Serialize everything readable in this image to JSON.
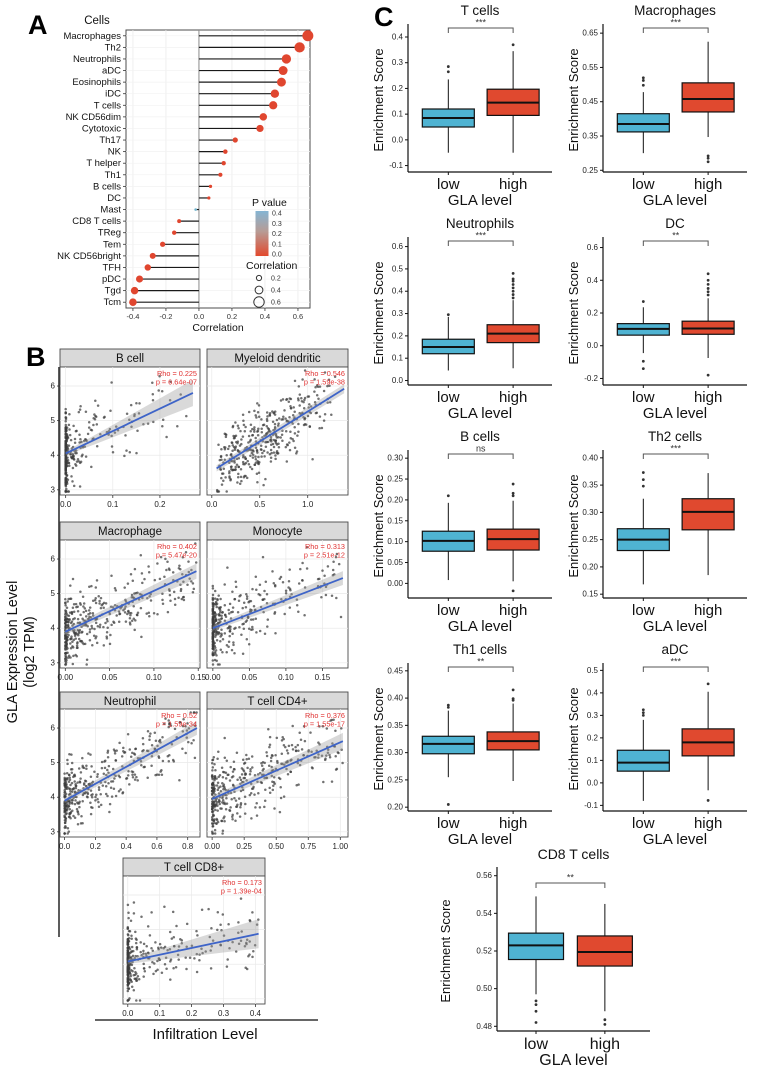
{
  "panels": {
    "a_label": "A",
    "b_label": "B",
    "c_label": "C"
  },
  "panel_a": {
    "title": "Cells",
    "xlabel": "Correlation",
    "x_ticks": [
      "-0.4",
      "-0.2",
      "0.0",
      "0.2",
      "0.4",
      "0.6"
    ],
    "x_tick_values": [
      -0.4,
      -0.2,
      0.0,
      0.2,
      0.4,
      0.6
    ],
    "xlim": [
      -0.442,
      0.673
    ],
    "colors": {
      "dot_red": "#E0462F",
      "dot_blue": "#72B5CE",
      "stick": "#1A1A1A",
      "zero_line": "#8A8A8A",
      "grid": "#ECECEC"
    },
    "legend_p_value": {
      "title": "P value",
      "labels": [
        "0.4",
        "0.3",
        "0.2",
        "0.1",
        "0.0"
      ],
      "color_top": "#85B5D3",
      "color_mid": "#B79C96",
      "color_bottom": "#E2492E"
    },
    "legend_correlation": {
      "title": "Correlation",
      "labels": [
        "0.2",
        "0.4",
        "0.6"
      ],
      "sizes": [
        2.6,
        3.9,
        5.2
      ]
    }
  },
  "panel_b": {
    "axis_label_line1": "GLA Expression Level",
    "axis_label_line2": "(log2 TPM)",
    "xlabel": "Infiltration Level",
    "y_ticks": [
      "3",
      "4",
      "5",
      "6"
    ],
    "y_tick_values": [
      3,
      4,
      5,
      6
    ],
    "ylim": [
      2.85,
      6.55
    ],
    "colors": {
      "point": "#3C3C3C",
      "line": "#3E64C8",
      "band": "#9A9A9A",
      "strip_bg": "#D9D9D9",
      "stat": "#E03131"
    }
  },
  "panel_c": {
    "ylabel": "Enrichment Score",
    "xlabel": "GLA level",
    "categories": [
      "low",
      "high"
    ],
    "colors": {
      "low": "#4FB3D2",
      "high": "#E0492F",
      "box_stroke": "#111111"
    }
  },
  "chart_data": [
    {
      "id": "A",
      "type": "lollipop",
      "title": "Cells",
      "xlabel": "Correlation",
      "cells": [
        "Macrophages",
        "Th2",
        "Neutrophils",
        "aDC",
        "Eosinophils",
        "iDC",
        "T cells",
        "NK CD56dim",
        "Cytotoxic",
        "Th17",
        "NK",
        "T helper",
        "Th1",
        "B cells",
        "DC",
        "Mast",
        "CD8 T cells",
        "TReg",
        "Tem",
        "NK CD56bright",
        "TFH",
        "pDC",
        "Tgd",
        "Tcm"
      ],
      "correlation": [
        0.66,
        0.61,
        0.53,
        0.51,
        0.5,
        0.46,
        0.45,
        0.39,
        0.37,
        0.22,
        0.16,
        0.15,
        0.13,
        0.07,
        0.06,
        -0.02,
        -0.12,
        -0.15,
        -0.22,
        -0.28,
        -0.31,
        -0.36,
        -0.39,
        -0.4
      ],
      "high_p_cells": [
        "Mast"
      ]
    },
    {
      "id": "B",
      "type": "scatter",
      "plots": [
        {
          "title": "B cell",
          "rho_label": "Rho = 0.225",
          "p_label": "p = 6.64e-07",
          "x_ticks": [
            "0.0",
            "0.1",
            "0.2"
          ],
          "x_tick_values": [
            0,
            0.1,
            0.2
          ],
          "xlim": [
            -0.012,
            0.285
          ],
          "line": {
            "x0": 0,
            "y0": 4.05,
            "x1": 0.27,
            "y1": 5.8
          },
          "band_w0": 0.06,
          "band_w1": 0.38,
          "n": 330,
          "dist": "zero",
          "cluster": 8,
          "xmax_pts": 0.27,
          "noise": 0.55,
          "seed": 7
        },
        {
          "title": "Myeloid dendritic",
          "rho_label": "Rho = 0.546",
          "p_label": "p = 1.59e-38",
          "x_ticks": [
            "0.0",
            "0.5",
            "1.0"
          ],
          "x_tick_values": [
            0,
            0.5,
            1
          ],
          "xlim": [
            -0.05,
            1.42
          ],
          "line": {
            "x0": 0.05,
            "y0": 3.62,
            "x1": 1.38,
            "y1": 5.92
          },
          "band_w0": 0.09,
          "band_w1": 0.13,
          "n": 390,
          "dist": "mid",
          "xmin_pts": 0.05,
          "xmax_pts": 1.35,
          "noise": 0.48,
          "seed": 13
        },
        {
          "title": "Macrophage",
          "rho_label": "Rho = 0.402",
          "p_label": "p = 5.47e-20",
          "x_ticks": [
            "0.00",
            "0.05",
            "0.10",
            "0.15"
          ],
          "x_tick_values": [
            0,
            0.05,
            0.1,
            0.15
          ],
          "xlim": [
            -0.006,
            0.152
          ],
          "line": {
            "x0": 0,
            "y0": 3.9,
            "x1": 0.148,
            "y1": 5.65
          },
          "band_w0": 0.08,
          "band_w1": 0.22,
          "n": 390,
          "dist": "zero",
          "cluster": 2.8,
          "xmax_pts": 0.148,
          "noise": 0.48,
          "seed": 21
        },
        {
          "title": "Monocyte",
          "rho_label": "Rho = 0.313",
          "p_label": "p = 2.51e-12",
          "x_ticks": [
            "0.00",
            "0.05",
            "0.10",
            "0.15"
          ],
          "x_tick_values": [
            0,
            0.05,
            0.1,
            0.15
          ],
          "xlim": [
            -0.008,
            0.185
          ],
          "line": {
            "x0": 0,
            "y0": 4.0,
            "x1": 0.178,
            "y1": 5.45
          },
          "band_w0": 0.07,
          "band_w1": 0.2,
          "n": 360,
          "dist": "zero",
          "cluster": 4,
          "xmax_pts": 0.178,
          "noise": 0.5,
          "seed": 33
        },
        {
          "title": "Neutrophil",
          "rho_label": "Rho = 0.52",
          "p_label": "p = 1.59e-34",
          "x_ticks": [
            "0.0",
            "0.2",
            "0.4",
            "0.6",
            "0.8"
          ],
          "x_tick_values": [
            0,
            0.2,
            0.4,
            0.6,
            0.8
          ],
          "xlim": [
            -0.03,
            0.88
          ],
          "line": {
            "x0": 0,
            "y0": 3.9,
            "x1": 0.86,
            "y1": 6.0
          },
          "band_w0": 0.07,
          "band_w1": 0.2,
          "n": 390,
          "dist": "zero",
          "cluster": 2.6,
          "xmax_pts": 0.86,
          "noise": 0.48,
          "seed": 41
        },
        {
          "title": "T cell CD4+",
          "rho_label": "Rho = 0.376",
          "p_label": "p = 1.55e-17",
          "x_ticks": [
            "0.00",
            "0.25",
            "0.50",
            "0.75",
            "1.00"
          ],
          "x_tick_values": [
            0,
            0.25,
            0.5,
            0.75,
            1
          ],
          "xlim": [
            -0.04,
            1.06
          ],
          "line": {
            "x0": 0,
            "y0": 3.95,
            "x1": 1.02,
            "y1": 5.62
          },
          "band_w0": 0.08,
          "band_w1": 0.24,
          "n": 390,
          "dist": "zero",
          "cluster": 2.4,
          "xmax_pts": 1.02,
          "noise": 0.5,
          "seed": 55
        },
        {
          "title": "T cell CD8+",
          "rho_label": "Rho = 0.173",
          "p_label": "p = 1.39e-04",
          "x_ticks": [
            "0.0",
            "0.1",
            "0.2",
            "0.3",
            "0.4"
          ],
          "x_tick_values": [
            0,
            0.1,
            0.2,
            0.3,
            0.4
          ],
          "xlim": [
            -0.015,
            0.43
          ],
          "line": {
            "x0": 0,
            "y0": 4.08,
            "x1": 0.41,
            "y1": 4.88
          },
          "band_w0": 0.07,
          "band_w1": 0.42,
          "n": 340,
          "dist": "zero",
          "cluster": 4.5,
          "xmax_pts": 0.41,
          "noise": 0.5,
          "seed": 67
        }
      ]
    },
    {
      "id": "C",
      "type": "box",
      "plots": [
        {
          "title": "T cells",
          "significance": "***",
          "y_ticks": [
            "-0.1",
            "0.0",
            "0.1",
            "0.2",
            "0.3",
            "0.4"
          ],
          "y_tick_values": [
            -0.1,
            0,
            0.1,
            0.2,
            0.3,
            0.4
          ],
          "ylim": [
            -0.125,
            0.435
          ],
          "low": {
            "whisker_low": -0.05,
            "q1": 0.05,
            "median": 0.085,
            "q3": 0.12,
            "whisker_high": 0.235,
            "outliers": [
              0.265,
              0.285
            ]
          },
          "high": {
            "whisker_low": -0.05,
            "q1": 0.095,
            "median": 0.145,
            "q3": 0.197,
            "whisker_high": 0.345,
            "outliers": [
              0.37
            ]
          }
        },
        {
          "title": "Macrophages",
          "significance": "***",
          "y_ticks": [
            "0.25",
            "0.35",
            "0.45",
            "0.55",
            "0.65"
          ],
          "y_tick_values": [
            0.25,
            0.35,
            0.45,
            0.55,
            0.65
          ],
          "ylim": [
            0.245,
            0.665
          ],
          "low": {
            "whisker_low": 0.3,
            "q1": 0.362,
            "median": 0.385,
            "q3": 0.415,
            "whisker_high": 0.478,
            "outliers": [
              0.498,
              0.512,
              0.52
            ]
          },
          "high": {
            "whisker_low": 0.347,
            "q1": 0.42,
            "median": 0.458,
            "q3": 0.505,
            "whisker_high": 0.625,
            "outliers": [
              0.275,
              0.285,
              0.292
            ]
          }
        },
        {
          "title": "Neutrophils",
          "significance": "***",
          "y_ticks": [
            "0.0",
            "0.1",
            "0.2",
            "0.3",
            "0.4",
            "0.5",
            "0.6"
          ],
          "y_tick_values": [
            0,
            0.1,
            0.2,
            0.3,
            0.4,
            0.5,
            0.6
          ],
          "ylim": [
            -0.02,
            0.625
          ],
          "low": {
            "whisker_low": 0.045,
            "q1": 0.12,
            "median": 0.15,
            "q3": 0.185,
            "whisker_high": 0.285,
            "outliers": [
              0.295
            ]
          },
          "high": {
            "whisker_low": 0.055,
            "q1": 0.17,
            "median": 0.21,
            "q3": 0.25,
            "whisker_high": 0.36,
            "outliers": [
              0.37,
              0.385,
              0.4,
              0.415,
              0.43,
              0.445,
              0.455,
              0.48
            ]
          }
        },
        {
          "title": "DC",
          "significance": "**",
          "y_ticks": [
            "-0.2",
            "0.0",
            "0.2",
            "0.4",
            "0.6"
          ],
          "y_tick_values": [
            -0.2,
            0,
            0.2,
            0.4,
            0.6
          ],
          "ylim": [
            -0.24,
            0.64
          ],
          "low": {
            "whisker_low": -0.045,
            "q1": 0.065,
            "median": 0.103,
            "q3": 0.135,
            "whisker_high": 0.235,
            "outliers": [
              0.27,
              -0.095,
              -0.14
            ]
          },
          "high": {
            "whisker_low": -0.075,
            "q1": 0.07,
            "median": 0.105,
            "q3": 0.15,
            "whisker_high": 0.29,
            "outliers": [
              0.31,
              0.33,
              0.35,
              0.375,
              0.4,
              0.44,
              -0.18
            ]
          }
        },
        {
          "title": "B cells",
          "significance": "ns",
          "y_ticks": [
            "0.00",
            "0.05",
            "0.10",
            "0.15",
            "0.20",
            "0.25",
            "0.30"
          ],
          "y_tick_values": [
            0,
            0.05,
            0.1,
            0.15,
            0.2,
            0.25,
            0.3
          ],
          "ylim": [
            -0.035,
            0.31
          ],
          "low": {
            "whisker_low": 0.008,
            "q1": 0.077,
            "median": 0.102,
            "q3": 0.125,
            "whisker_high": 0.193,
            "outliers": [
              0.21
            ]
          },
          "high": {
            "whisker_low": 0.005,
            "q1": 0.08,
            "median": 0.106,
            "q3": 0.13,
            "whisker_high": 0.198,
            "outliers": [
              0.21,
              0.216,
              0.238,
              -0.018
            ]
          }
        },
        {
          "title": "Th2 cells",
          "significance": "***",
          "y_ticks": [
            "0.15",
            "0.20",
            "0.25",
            "0.30",
            "0.35",
            "0.40"
          ],
          "y_tick_values": [
            0.15,
            0.2,
            0.25,
            0.3,
            0.35,
            0.4
          ],
          "ylim": [
            0.143,
            0.407
          ],
          "low": {
            "whisker_low": 0.168,
            "q1": 0.23,
            "median": 0.25,
            "q3": 0.27,
            "whisker_high": 0.325,
            "outliers": [
              0.348,
              0.36,
              0.373
            ]
          },
          "high": {
            "whisker_low": 0.185,
            "q1": 0.268,
            "median": 0.301,
            "q3": 0.325,
            "whisker_high": 0.372,
            "outliers": []
          }
        },
        {
          "title": "Th1 cells",
          "significance": "**",
          "y_ticks": [
            "0.20",
            "0.25",
            "0.30",
            "0.35",
            "0.40",
            "0.45"
          ],
          "y_tick_values": [
            0.2,
            0.25,
            0.3,
            0.35,
            0.4,
            0.45
          ],
          "ylim": [
            0.193,
            0.457
          ],
          "low": {
            "whisker_low": 0.255,
            "q1": 0.298,
            "median": 0.316,
            "q3": 0.33,
            "whisker_high": 0.377,
            "outliers": [
              0.383,
              0.387,
              0.205
            ]
          },
          "high": {
            "whisker_low": 0.248,
            "q1": 0.305,
            "median": 0.321,
            "q3": 0.338,
            "whisker_high": 0.39,
            "outliers": [
              0.396,
              0.399,
              0.415
            ]
          }
        },
        {
          "title": "aDC",
          "significance": "***",
          "y_ticks": [
            "-0.1",
            "0.0",
            "0.1",
            "0.2",
            "0.3",
            "0.4",
            "0.5"
          ],
          "y_tick_values": [
            -0.1,
            0,
            0.1,
            0.2,
            0.3,
            0.4,
            0.5
          ],
          "ylim": [
            -0.125,
            0.515
          ],
          "low": {
            "whisker_low": -0.08,
            "q1": 0.052,
            "median": 0.09,
            "q3": 0.145,
            "whisker_high": 0.28,
            "outliers": [
              0.3,
              0.312,
              0.325
            ]
          },
          "high": {
            "whisker_low": -0.033,
            "q1": 0.12,
            "median": 0.18,
            "q3": 0.24,
            "whisker_high": 0.405,
            "outliers": [
              0.44,
              -0.078
            ]
          }
        },
        {
          "title": "CD8 T cells",
          "significance": "**",
          "y_ticks": [
            "0.48",
            "0.50",
            "0.52",
            "0.54",
            "0.56"
          ],
          "y_tick_values": [
            0.48,
            0.5,
            0.52,
            0.54,
            0.56
          ],
          "ylim": [
            0.4775,
            0.5625
          ],
          "low": {
            "whisker_low": 0.497,
            "q1": 0.5155,
            "median": 0.523,
            "q3": 0.5295,
            "whisker_high": 0.549,
            "outliers": [
              0.4935,
              0.4915,
              0.488,
              0.482
            ]
          },
          "high": {
            "whisker_low": 0.488,
            "q1": 0.512,
            "median": 0.5195,
            "q3": 0.528,
            "whisker_high": 0.545,
            "outliers": [
              0.4835,
              0.481
            ]
          }
        }
      ]
    }
  ]
}
